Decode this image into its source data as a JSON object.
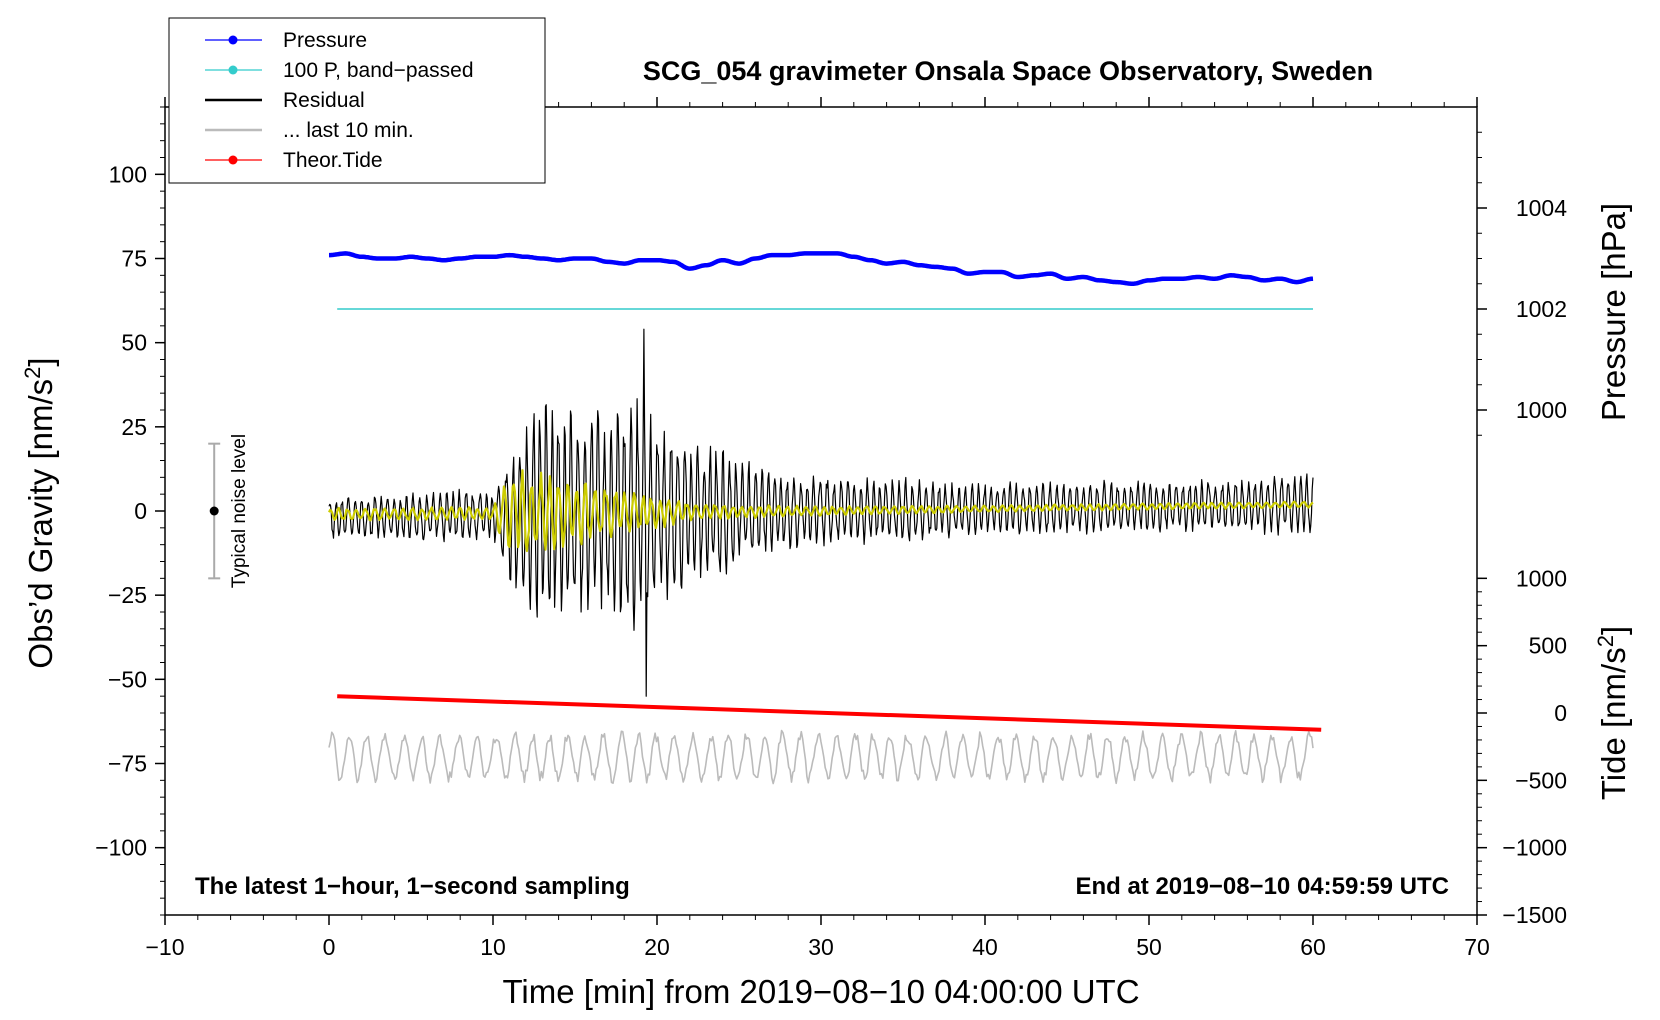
{
  "chart_data": {
    "type": "line",
    "title": "SCG_054 gravimeter Onsala Space Observatory, Sweden",
    "xlabel": "Time [min] from 2019−08−10 04:00:00 UTC",
    "ylabel_left": "Obs’d Gravity [nm/s²]",
    "ylabel_right_top": "Pressure [hPa]",
    "ylabel_right_bottom": "Tide [nm/s²]",
    "xlim": [
      -10,
      70
    ],
    "ylim_left": [
      -120,
      120
    ],
    "x_ticks": [
      -10,
      0,
      10,
      20,
      30,
      40,
      50,
      60,
      70
    ],
    "x_tick_labels": [
      "−10",
      "0",
      "10",
      "20",
      "30",
      "40",
      "50",
      "60",
      "70"
    ],
    "y_left_ticks": [
      100,
      75,
      50,
      25,
      0,
      -25,
      -50,
      -75,
      -100
    ],
    "y_left_tick_labels": [
      "100",
      "75",
      "50",
      "25",
      "0",
      "−25",
      "−50",
      "−75",
      "−100"
    ],
    "pressure_axis": {
      "ticks": [
        1004,
        1002,
        1000
      ],
      "tick_labels": [
        "1004",
        "1002",
        "1000"
      ],
      "ref_value": 1002,
      "ref_gravity": 60,
      "gravity_per_hpa": 15
    },
    "tide_axis": {
      "ticks": [
        1000,
        500,
        0,
        -500,
        -1000,
        -1500
      ],
      "tick_labels": [
        "1000",
        "500",
        "0",
        "−500",
        "−1000",
        "−1500"
      ],
      "ref_value": 0,
      "ref_gravity": -60,
      "gravity_per_unit": 0.04
    },
    "legend": {
      "placement": "top-left",
      "items": [
        {
          "label": "Pressure",
          "color": "#0000ff",
          "marker": "dot"
        },
        {
          "label": "100 P, band−passed",
          "color": "#33cccc",
          "marker": "dot"
        },
        {
          "label": "Residual",
          "color": "#000000",
          "marker": "none"
        },
        {
          "label": "... last 10 min.",
          "color": "#bbbbbb",
          "marker": "none"
        },
        {
          "label": "Theor.Tide",
          "color": "#ff0000",
          "marker": "dot"
        }
      ]
    },
    "notes": {
      "bottom_left": "The latest 1−hour, 1−second sampling",
      "bottom_right": "End at 2019−08−10 04:59:59 UTC"
    },
    "noise_indicator": {
      "label": "Typical noise level",
      "x": -7,
      "center": 0,
      "half_range": 20
    },
    "series": [
      {
        "name": "Pressure",
        "color": "#0000ff",
        "axis": "left",
        "x": [
          0,
          1,
          2,
          3,
          4,
          5,
          6,
          7,
          8,
          9,
          10,
          11,
          12,
          13,
          14,
          15,
          16,
          17,
          18,
          19,
          20,
          21,
          22,
          23,
          24,
          25,
          26,
          27,
          28,
          29,
          30,
          31,
          32,
          33,
          34,
          35,
          36,
          37,
          38,
          39,
          40,
          41,
          42,
          43,
          44,
          45,
          46,
          47,
          48,
          49,
          50,
          51,
          52,
          53,
          54,
          55,
          56,
          57,
          58,
          59,
          60
        ],
        "values": [
          76,
          76.5,
          75.5,
          75,
          75,
          75.5,
          75,
          74.5,
          75,
          75.5,
          75.5,
          76,
          75.5,
          75,
          74.5,
          75,
          75,
          74,
          73.5,
          74.5,
          74.5,
          74,
          72,
          73,
          74.5,
          73.5,
          75,
          76,
          76,
          76.5,
          76.5,
          76.5,
          75.5,
          74.5,
          73.5,
          74,
          73,
          72.5,
          72,
          70.5,
          71,
          71,
          69.5,
          70,
          70.5,
          69,
          69.5,
          68.5,
          68,
          67.5,
          68.5,
          69,
          69,
          69.5,
          69,
          70,
          69.5,
          68.5,
          69,
          68,
          69
        ]
      },
      {
        "name": "100 P, band−passed",
        "color": "#33cccc",
        "axis": "left",
        "x": [
          0.5,
          60
        ],
        "values": [
          60,
          60
        ]
      },
      {
        "name": "Theor.Tide",
        "color": "#ff0000",
        "axis": "left",
        "x": [
          0.5,
          60.5
        ],
        "values": [
          -55,
          -65
        ]
      },
      {
        "name": "Residual",
        "color": "#000000",
        "axis": "left",
        "generated": true,
        "x_range": [
          0,
          60
        ],
        "n_points": 1300,
        "envelope": {
          "x": [
            0,
            8,
            10,
            10.5,
            11,
            12,
            13,
            14,
            15,
            16,
            17,
            18,
            19,
            20,
            21,
            22,
            23,
            24,
            25,
            26,
            27,
            28,
            30,
            35,
            40,
            45,
            50,
            55,
            60
          ],
          "amplitude": [
            7,
            8,
            8,
            14,
            20,
            28,
            38,
            32,
            34,
            36,
            30,
            36,
            38,
            28,
            26,
            22,
            22,
            20,
            16,
            15,
            13,
            12,
            11,
            10,
            8,
            8,
            8,
            8,
            10
          ]
        },
        "baseline": {
          "x": [
            0,
            30,
            60
          ],
          "values": [
            -2,
            0,
            2
          ]
        },
        "period_min": 0.4,
        "extremes": {
          "max": 54,
          "min": -55
        }
      },
      {
        "name": "Residual (smoothed)",
        "color": "#cccc00",
        "axis": "left",
        "generated": true,
        "x_range": [
          0,
          60
        ],
        "n_points": 900,
        "envelope": {
          "x": [
            0,
            10,
            10.5,
            11,
            12,
            13,
            14,
            16,
            18,
            20,
            22,
            25,
            30,
            40,
            60
          ],
          "amplitude": [
            2,
            2,
            8,
            12,
            14,
            13,
            11,
            9,
            7,
            5,
            3,
            2,
            1.5,
            1,
            1
          ]
        },
        "baseline": {
          "x": [
            0,
            30,
            60
          ],
          "values": [
            -1,
            0,
            2
          ]
        },
        "period_min": 0.55
      },
      {
        "name": "... last 10 min.",
        "color": "#bbbbbb",
        "axis": "left",
        "generated": true,
        "x_range": [
          0,
          60
        ],
        "n_points": 700,
        "center": -73,
        "amplitude": 8,
        "period_min": 1.1
      }
    ]
  }
}
